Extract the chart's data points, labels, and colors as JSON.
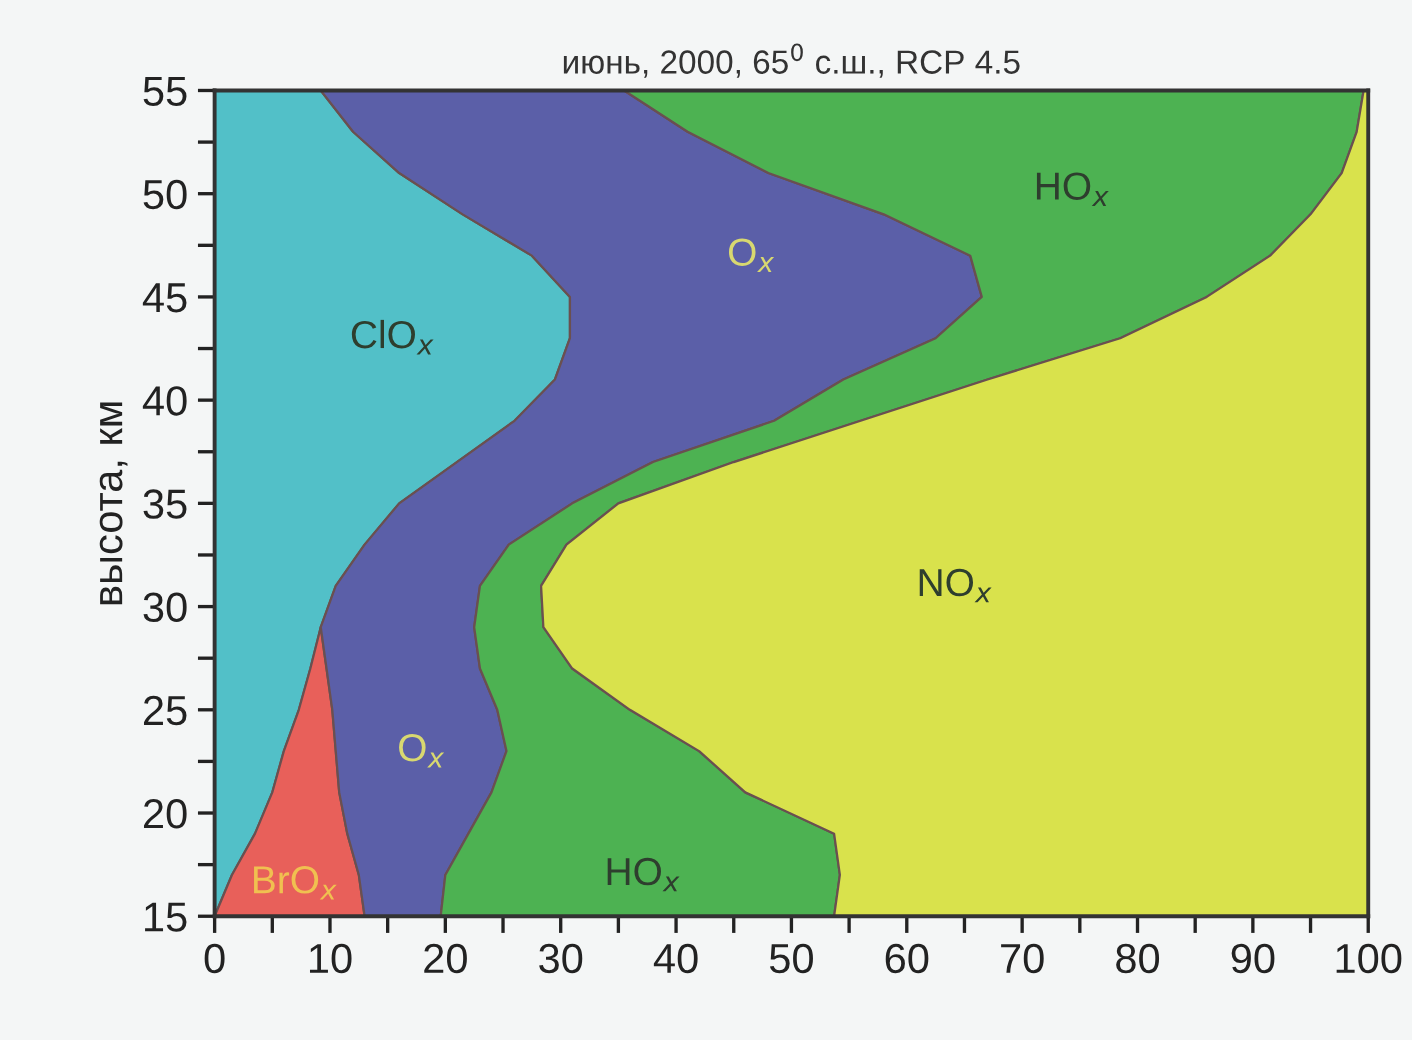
{
  "chart_data": {
    "type": "area",
    "stacked": true,
    "orientation": "horizontal",
    "title": "июнь, 2000, 65$^{0}$ с.ш., RCP 4.5",
    "ylabel": "высота, км",
    "x": [
      15,
      17,
      19,
      21,
      23,
      25,
      27,
      29,
      31,
      33,
      35,
      37,
      39,
      41,
      43,
      45,
      47,
      49,
      51,
      53,
      55
    ],
    "series": [
      {
        "name": "ClO$_{x}$",
        "color": "#52c0c8",
        "values": [
          0,
          1.5,
          3.5,
          5,
          6,
          7.3,
          8.3,
          9.2,
          10.5,
          13,
          16,
          21,
          26,
          29.5,
          30.8,
          30.8,
          27.5,
          21.5,
          16,
          12,
          9.2
        ]
      },
      {
        "name": "BrO$_{x}$",
        "color": "#e8605a",
        "values": [
          13,
          11,
          8,
          5.8,
          4.5,
          2.9,
          1.4,
          0,
          null,
          null,
          null,
          null,
          null,
          null,
          null,
          null,
          null,
          null,
          null,
          null,
          null
        ]
      },
      {
        "name": "O$_{x}$",
        "color": "#5b5fa8",
        "values": [
          6.6,
          7.5,
          10.5,
          13.2,
          14.8,
          14.3,
          13.3,
          13.3,
          12.5,
          12.5,
          15,
          17,
          22.5,
          25,
          31.7,
          35.7,
          38,
          36.5,
          32,
          29,
          26.3
        ]
      },
      {
        "name": "HO$_{x}$",
        "color": "#4db252",
        "values": [
          34.1,
          34.2,
          31.7,
          22,
          16.7,
          11.5,
          8,
          6,
          5.3,
          5,
          4,
          7,
          7.5,
          12.5,
          16,
          19.5,
          26,
          37,
          49.7,
          58,
          64.1
        ]
      },
      {
        "name": "NO$_{x}$",
        "color": "#d9e24c",
        "values": [
          46.3,
          45.8,
          46.3,
          54,
          58,
          64,
          69,
          71.5,
          71.7,
          69.5,
          65,
          55,
          44,
          33,
          21.5,
          14,
          8.5,
          5,
          2.3,
          1,
          0.4
        ]
      }
    ],
    "xlim": [
      0,
      100
    ],
    "ylim": [
      15,
      55
    ],
    "xticks": [
      0,
      {
        "value": 5,
        "label": null
      },
      10,
      {
        "value": 15,
        "label": null
      },
      20,
      {
        "value": 25,
        "label": null
      },
      30,
      {
        "value": 35,
        "label": null
      },
      40,
      {
        "value": 45,
        "label": null
      },
      50,
      {
        "value": 55,
        "label": null
      },
      60,
      {
        "value": 65,
        "label": null
      },
      70,
      {
        "value": 75,
        "label": null
      },
      80,
      {
        "value": 85,
        "label": null
      },
      90,
      {
        "value": 95,
        "label": null
      },
      100
    ],
    "yticks": [
      15,
      {
        "value": 17.5,
        "label": null
      },
      20,
      {
        "value": 22.5,
        "label": null
      },
      25,
      {
        "value": 27.5,
        "label": null
      },
      30,
      {
        "value": 32.5,
        "label": null
      },
      35,
      {
        "value": 37.5,
        "label": null
      },
      40,
      {
        "value": 42.5,
        "label": null
      },
      45,
      {
        "value": 47.5,
        "label": null
      },
      50,
      {
        "value": 52.5,
        "label": null
      },
      55
    ],
    "grid": false
  }
}
